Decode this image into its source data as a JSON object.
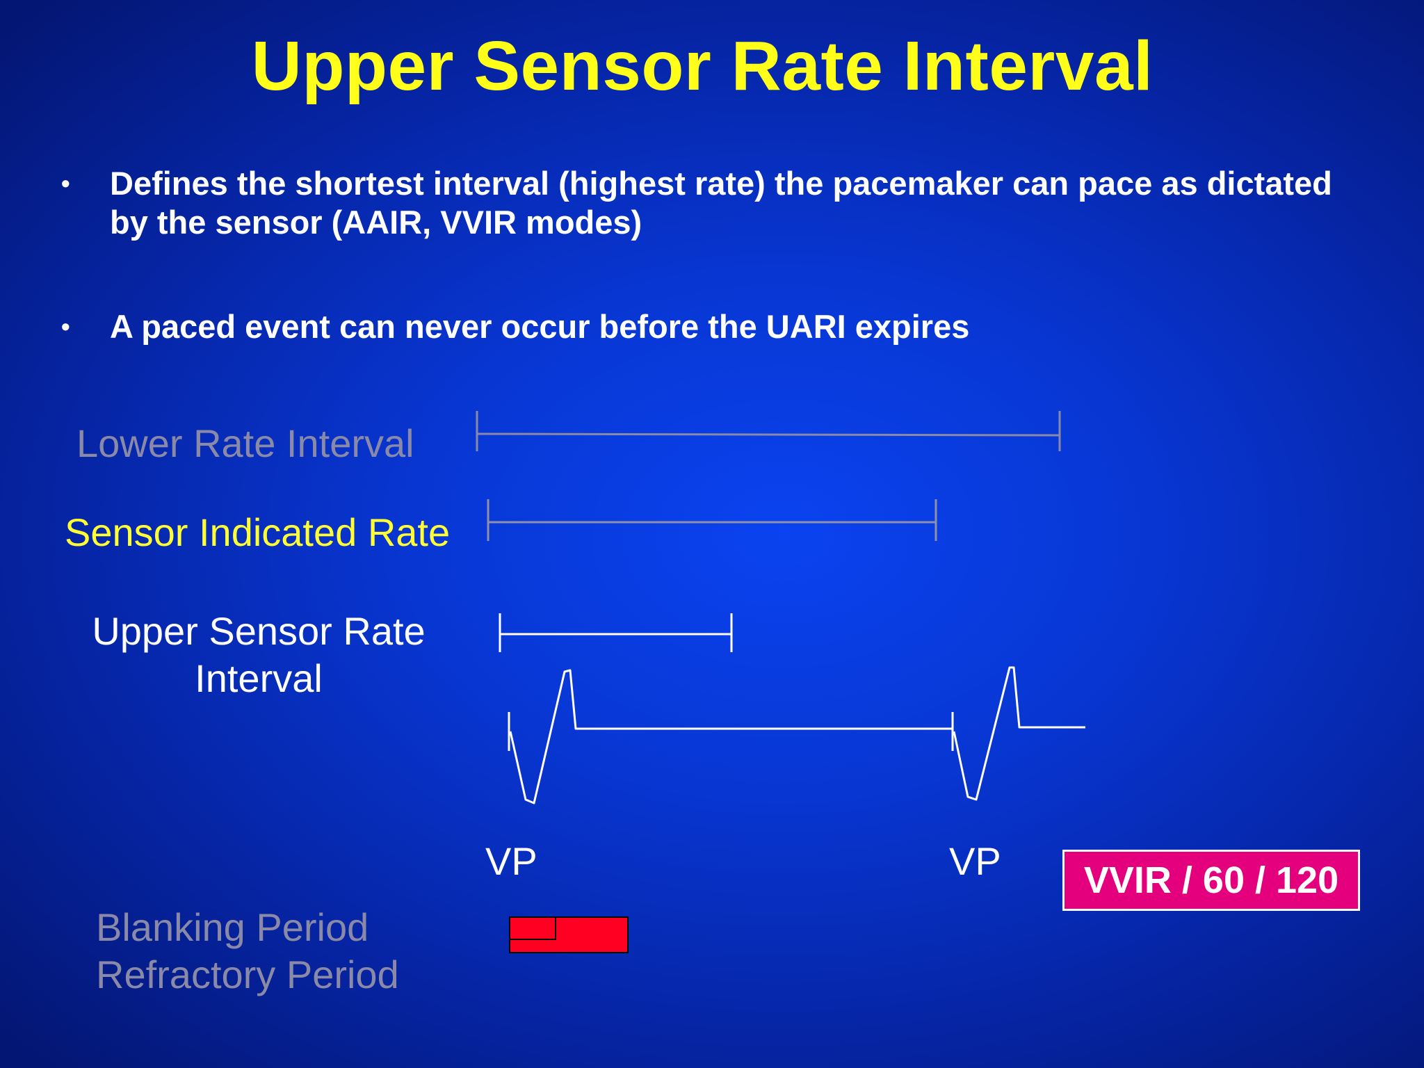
{
  "title": "Upper Sensor Rate Interval",
  "bullets": [
    "Defines the shortest interval (highest rate) the pacemaker can pace as dictated by the sensor (AAIR, VVIR modes)",
    "A paced event can never occur before the UARI expires"
  ],
  "bullet_symbol": "•",
  "labels": {
    "lower_rate_interval": "Lower Rate Interval",
    "sensor_indicated_rate": "Sensor Indicated Rate",
    "upper_sensor_rate_line1": "Upper Sensor Rate",
    "upper_sensor_rate_line2": "Interval",
    "blanking_period": "Blanking Period",
    "refractory_period": "Refractory Period"
  },
  "events": {
    "vp1": "VP",
    "vp2": "VP"
  },
  "mode": "VVIR / 60 / 120",
  "colors": {
    "title": "#ffff1a",
    "lower_rate": "#8a8aa8",
    "sensor_rate": "#ffff33",
    "upper_sensor": "#ffffff",
    "mode_box": "#e4007c",
    "refractory_bar": "#ff0022"
  }
}
